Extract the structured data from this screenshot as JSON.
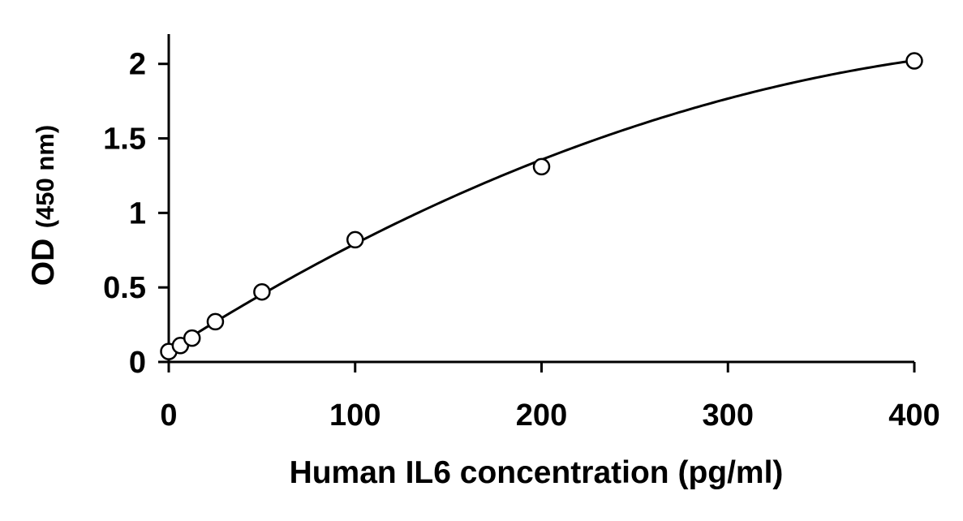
{
  "chart_data": {
    "type": "scatter",
    "title": "",
    "xlabel": "Human IL6 concentration (pg/ml)",
    "ylabel": {
      "main": "OD",
      "sub": "(450 nm)"
    },
    "xlim": [
      0,
      400
    ],
    "ylim": [
      0,
      2.2
    ],
    "xticks": [
      0,
      100,
      200,
      300,
      400
    ],
    "xtick_labels": [
      "0",
      "100",
      "200",
      "300",
      "400"
    ],
    "yticks": [
      0,
      0.5,
      1,
      1.5,
      2
    ],
    "ytick_labels": [
      "0",
      "0.5",
      "1",
      "1.5",
      "2"
    ],
    "grid": false,
    "legend": "none",
    "series": [
      {
        "type": "scatter",
        "marker": "open-circle",
        "x": [
          0,
          6.25,
          12.5,
          25,
          50,
          100,
          200,
          400
        ],
        "y": [
          0.07,
          0.11,
          0.16,
          0.27,
          0.47,
          0.82,
          1.31,
          2.02
        ]
      },
      {
        "type": "line",
        "fit": "quadratic",
        "coefficients": [
          0.075,
          0.00795,
          -7.7e-06
        ],
        "x_range": [
          0,
          400
        ]
      }
    ],
    "colors": {
      "axis": "#000000",
      "marker_stroke": "#000000",
      "marker_fill": "#ffffff",
      "curve": "#000000"
    }
  }
}
